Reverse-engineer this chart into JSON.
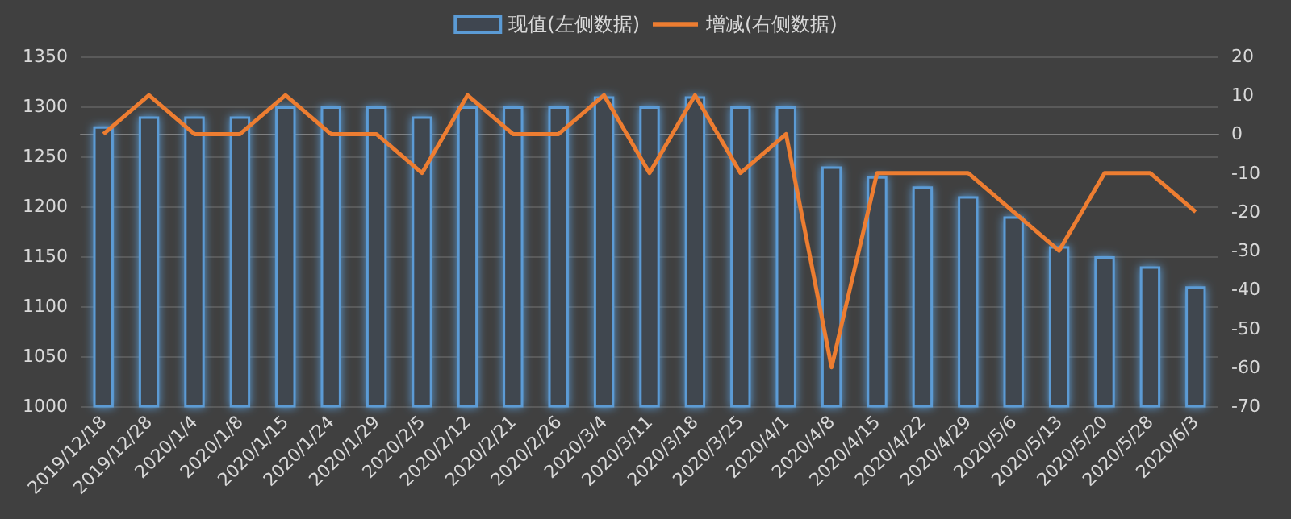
{
  "chart_data": {
    "type": "bar",
    "categories": [
      "2019/12/18",
      "2019/12/28",
      "2020/1/4",
      "2020/1/8",
      "2020/1/15",
      "2020/1/24",
      "2020/1/29",
      "2020/2/5",
      "2020/2/12",
      "2020/2/21",
      "2020/2/26",
      "2020/3/4",
      "2020/3/11",
      "2020/3/18",
      "2020/3/25",
      "2020/4/1",
      "2020/4/8",
      "2020/4/15",
      "2020/4/22",
      "2020/4/29",
      "2020/5/6",
      "2020/5/13",
      "2020/5/20",
      "2020/5/28",
      "2020/6/3"
    ],
    "series": [
      {
        "name": "现值(左侧数据)",
        "color": "#5b9bd5",
        "values": [
          1280,
          1290,
          1290,
          1290,
          1300,
          1300,
          1300,
          1290,
          1300,
          1300,
          1300,
          1310,
          1300,
          1310,
          1300,
          1300,
          1240,
          1230,
          1220,
          1210,
          1190,
          1160,
          1150,
          1140,
          1120
        ]
      },
      {
        "name": "增减(右侧数据)",
        "type": "line",
        "axis": "y2",
        "color": "#ed7d31",
        "values": [
          0,
          10,
          0,
          0,
          10,
          0,
          0,
          -10,
          10,
          0,
          0,
          10,
          -10,
          10,
          -10,
          0,
          -60,
          -10,
          -10,
          -10,
          -20,
          -30,
          -10,
          -10,
          -20
        ]
      }
    ],
    "ylim": [
      1000,
      1350
    ],
    "yticks": [
      1000,
      1050,
      1100,
      1150,
      1200,
      1250,
      1300,
      1350
    ],
    "y2lim": [
      -70,
      20
    ],
    "y2ticks": [
      -70,
      -60,
      -50,
      -40,
      -30,
      -20,
      -10,
      0,
      10,
      20
    ],
    "grid": "y",
    "legend": "top",
    "marker": "none"
  }
}
